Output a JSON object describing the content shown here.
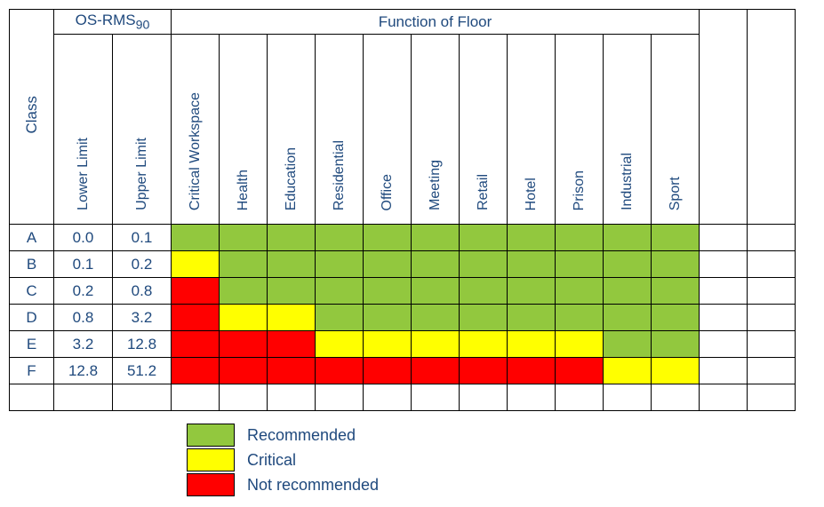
{
  "colors": {
    "recommended": "#92c83e",
    "critical": "#ffff00",
    "not_recommended": "#ff0000",
    "text": "#1f497d",
    "border": "#000000",
    "background": "#ffffff"
  },
  "headers": {
    "class": "Class",
    "osrms_html": "OS-RMS<sub>90</sub>",
    "lower_limit": "Lower Limit",
    "upper_limit": "Upper Limit",
    "function_of_floor": "Function of Floor"
  },
  "functions": [
    "Critical Workspace",
    "Health",
    "Education",
    "Residential",
    "Office",
    "Meeting",
    "Retail",
    "Hotel",
    "Prison",
    "Industrial",
    "Sport"
  ],
  "rows": [
    {
      "class": "A",
      "lower": "0.0",
      "upper": "0.1",
      "cells": [
        "R",
        "R",
        "R",
        "R",
        "R",
        "R",
        "R",
        "R",
        "R",
        "R",
        "R"
      ]
    },
    {
      "class": "B",
      "lower": "0.1",
      "upper": "0.2",
      "cells": [
        "C",
        "R",
        "R",
        "R",
        "R",
        "R",
        "R",
        "R",
        "R",
        "R",
        "R"
      ]
    },
    {
      "class": "C",
      "lower": "0.2",
      "upper": "0.8",
      "cells": [
        "N",
        "R",
        "R",
        "R",
        "R",
        "R",
        "R",
        "R",
        "R",
        "R",
        "R"
      ]
    },
    {
      "class": "D",
      "lower": "0.8",
      "upper": "3.2",
      "cells": [
        "N",
        "C",
        "C",
        "R",
        "R",
        "R",
        "R",
        "R",
        "R",
        "R",
        "R"
      ]
    },
    {
      "class": "E",
      "lower": "3.2",
      "upper": "12.8",
      "cells": [
        "N",
        "N",
        "N",
        "C",
        "C",
        "C",
        "C",
        "C",
        "C",
        "R",
        "R"
      ]
    },
    {
      "class": "F",
      "lower": "12.8",
      "upper": "51.2",
      "cells": [
        "N",
        "N",
        "N",
        "N",
        "N",
        "N",
        "N",
        "N",
        "N",
        "C",
        "C"
      ]
    }
  ],
  "legend": [
    {
      "key": "R",
      "label": "Recommended",
      "color_key": "recommended"
    },
    {
      "key": "C",
      "label": "Critical",
      "color_key": "critical"
    },
    {
      "key": "N",
      "label": "Not recommended",
      "color_key": "not_recommended"
    }
  ],
  "layout": {
    "col_width_class": 50,
    "col_width_limit": 66,
    "col_width_func": 54,
    "col_width_extra": 54,
    "extra_cols": 2,
    "header_row_height": 214,
    "data_row_height": 30,
    "font_family": "Verdana",
    "font_size_pt": 12
  }
}
